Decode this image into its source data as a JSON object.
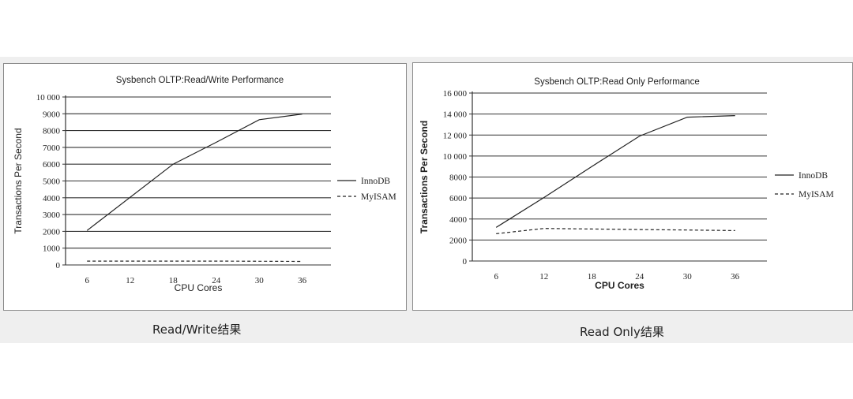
{
  "captions": {
    "left": "Read/Write结果",
    "right": "Read Only结果"
  },
  "chart_data": [
    {
      "type": "line",
      "title": "Sysbench OLTP:Read/Write Performance",
      "xlabel": "CPU Cores",
      "ylabel": "Transactions Per Second",
      "x_ticks": [
        "6",
        "12",
        "18",
        "24",
        "30",
        "36"
      ],
      "y_ticks": [
        "0",
        "1000",
        "2000",
        "3000",
        "4000",
        "5000",
        "6000",
        "7000",
        "8000",
        "9000",
        "10 000"
      ],
      "xlim": [
        3,
        40
      ],
      "ylim": [
        0,
        10000
      ],
      "grid": "horizontal",
      "legend_position": "right",
      "series": [
        {
          "name": "InnoDB",
          "style": "solid",
          "x": [
            6,
            18,
            24,
            30,
            36
          ],
          "y": [
            2050,
            6000,
            7300,
            8650,
            8980
          ]
        },
        {
          "name": "MyISAM",
          "style": "dashed",
          "x": [
            6,
            12,
            18,
            24,
            30,
            36
          ],
          "y": [
            230,
            230,
            230,
            230,
            220,
            210
          ]
        }
      ]
    },
    {
      "type": "line",
      "title": "Sysbench OLTP:Read Only Performance",
      "xlabel": "CPU Cores",
      "ylabel": "Transactions Per Second",
      "x_ticks": [
        "6",
        "12",
        "18",
        "24",
        "30",
        "36"
      ],
      "y_ticks": [
        "0",
        "2000",
        "4000",
        "6000",
        "8000",
        "10 000",
        "12 000",
        "14 000",
        "16 000"
      ],
      "xlim": [
        3,
        40
      ],
      "ylim": [
        0,
        16000
      ],
      "grid": "horizontal",
      "legend_position": "right",
      "series": [
        {
          "name": "InnoDB",
          "style": "solid",
          "x": [
            6,
            12,
            18,
            24,
            30,
            36
          ],
          "y": [
            3200,
            6050,
            9000,
            11900,
            13700,
            13850
          ]
        },
        {
          "name": "MyISAM",
          "style": "dashed",
          "x": [
            6,
            12,
            18,
            24,
            30,
            36
          ],
          "y": [
            2600,
            3100,
            3050,
            3000,
            2950,
            2900
          ]
        }
      ]
    }
  ]
}
